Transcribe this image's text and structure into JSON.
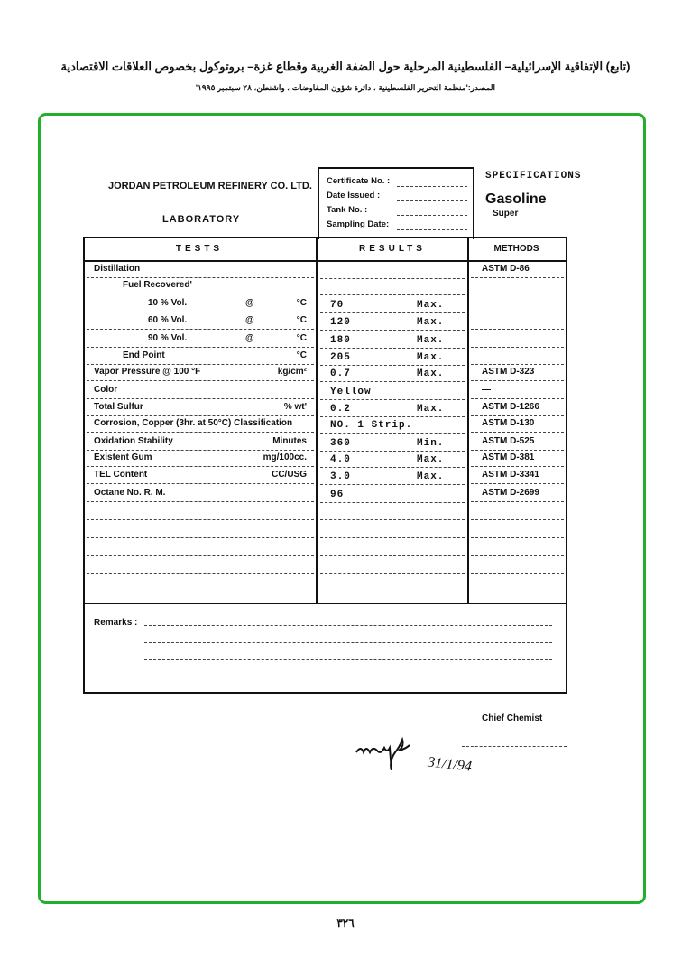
{
  "header": {
    "title": "(تابع) الإتفاقية الإسرائيلية– الفلسطينية المرحلية حول الضفة الغربية وقطاع غزة– بروتوكول بخصوص العلاقات الاقتصادية",
    "source": "المصدر:'منظمة التحرير الفلسطينية ، دائرة شؤون المفاوضات ، واشنطن، ٢٨ سبتمبر ١٩٩٥'"
  },
  "form": {
    "company": "JORDAN PETROLEUM REFINERY CO. LTD.",
    "department": "LABORATORY",
    "cert_fields": [
      "Certificate No. :",
      "Date Issued :",
      "Tank No. :",
      "Sampling Date:"
    ],
    "spec_label": "SPECIFICATIONS",
    "product": "Gasoline",
    "grade": "Super",
    "columns": [
      "TESTS",
      "RESULTS",
      "METHODS"
    ],
    "rows": [
      {
        "test": "Distillation",
        "unit": "",
        "at": "",
        "result": "",
        "limit": "",
        "method": "ASTM D-86",
        "indent": 0
      },
      {
        "test": "Fuel Recovered'",
        "unit": "",
        "at": "",
        "result": "",
        "limit": "",
        "method": "",
        "indent": 1
      },
      {
        "test": "10 % Vol.",
        "at": "@",
        "unit": "°C",
        "result": "70",
        "limit": "Max.",
        "method": "",
        "indent": 2
      },
      {
        "test": "60 % Vol.",
        "at": "@",
        "unit": "°C",
        "result": "120",
        "limit": "Max.",
        "method": "",
        "indent": 2
      },
      {
        "test": "90 % Vol.",
        "at": "@",
        "unit": "°C",
        "result": "180",
        "limit": "Max.",
        "method": "",
        "indent": 2
      },
      {
        "test": "End Point",
        "at": "",
        "unit": "°C",
        "result": "205",
        "limit": "Max.",
        "method": "",
        "indent": 1
      },
      {
        "test": "Vapor Pressure @ 100 °F",
        "at": "",
        "unit": "kg/cm²",
        "result": "0.7",
        "limit": "Max.",
        "method": "ASTM D-323",
        "indent": 0
      },
      {
        "test": "Color",
        "at": "",
        "unit": "",
        "result": "Yellow",
        "limit": "",
        "method": "—",
        "indent": 0
      },
      {
        "test": "Total Sulfur",
        "at": "",
        "unit": "% wt'",
        "result": "0.2",
        "limit": "Max.",
        "method": "ASTM D-1266",
        "indent": 0
      },
      {
        "test": "Corrosion, Copper (3hr. at 50°C) Classification",
        "at": "",
        "unit": "",
        "result": "NO. 1 Strip.",
        "limit": "",
        "method": "ASTM D-130",
        "indent": 0
      },
      {
        "test": "Oxidation Stability",
        "at": "",
        "unit": "Minutes",
        "result": "360",
        "limit": "Min.",
        "method": "ASTM D-525",
        "indent": 0
      },
      {
        "test": "Existent Gum",
        "at": "",
        "unit": "mg/100cc.",
        "result": "4.0",
        "limit": "Max.",
        "method": "ASTM D-381",
        "indent": 0
      },
      {
        "test": "TEL Content",
        "at": "",
        "unit": "CC/USG",
        "result": "3.0",
        "limit": "Max.",
        "method": "ASTM D-3341",
        "indent": 0
      },
      {
        "test": "Octane No. R. M.",
        "at": "",
        "unit": "",
        "result": "96",
        "limit": "",
        "method": "ASTM D-2699",
        "indent": 0
      }
    ],
    "remarks_label": "Remarks :",
    "chief_label": "Chief Chemist",
    "date_handwritten": "31/1/94"
  },
  "page_number": "٣٢٦",
  "colors": {
    "frame": "#22b02a"
  }
}
